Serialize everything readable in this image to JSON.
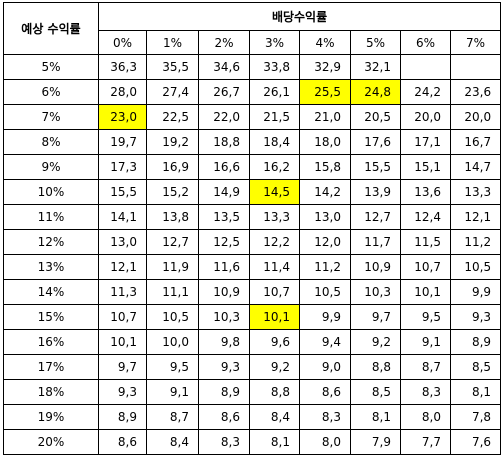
{
  "table": {
    "corner": "예상 수익률",
    "group_header": "배당수익률",
    "columns": [
      "0%",
      "1%",
      "2%",
      "3%",
      "4%",
      "5%",
      "6%",
      "7%"
    ],
    "rows": [
      {
        "label": "5%",
        "values": [
          "36,3",
          "35,5",
          "34,6",
          "33,8",
          "32,9",
          "32,1",
          null,
          null
        ]
      },
      {
        "label": "6%",
        "values": [
          "28,0",
          "27,4",
          "26,7",
          "26,1",
          "25,5",
          "24,8",
          "24,2",
          "23,6"
        ]
      },
      {
        "label": "7%",
        "values": [
          "23,0",
          "22,5",
          "22,0",
          "21,5",
          "21,0",
          "20,5",
          "20,0",
          "20,0"
        ]
      },
      {
        "label": "8%",
        "values": [
          "19,7",
          "19,2",
          "18,8",
          "18,4",
          "18,0",
          "17,6",
          "17,1",
          "16,7"
        ]
      },
      {
        "label": "9%",
        "values": [
          "17,3",
          "16,9",
          "16,6",
          "16,2",
          "15,8",
          "15,5",
          "15,1",
          "14,7"
        ]
      },
      {
        "label": "10%",
        "values": [
          "15,5",
          "15,2",
          "14,9",
          "14,5",
          "14,2",
          "13,9",
          "13,6",
          "13,3"
        ]
      },
      {
        "label": "11%",
        "values": [
          "14,1",
          "13,8",
          "13,5",
          "13,3",
          "13,0",
          "12,7",
          "12,4",
          "12,1"
        ]
      },
      {
        "label": "12%",
        "values": [
          "13,0",
          "12,7",
          "12,5",
          "12,2",
          "12,0",
          "11,7",
          "11,5",
          "11,2"
        ]
      },
      {
        "label": "13%",
        "values": [
          "12,1",
          "11,9",
          "11,6",
          "11,4",
          "11,2",
          "10,9",
          "10,7",
          "10,5"
        ]
      },
      {
        "label": "14%",
        "values": [
          "11,3",
          "11,1",
          "10,9",
          "10,7",
          "10,5",
          "10,3",
          "10,1",
          "9,9"
        ]
      },
      {
        "label": "15%",
        "values": [
          "10,7",
          "10,5",
          "10,3",
          "10,1",
          "9,9",
          "9,7",
          "9,5",
          "9,3"
        ]
      },
      {
        "label": "16%",
        "values": [
          "10,1",
          "10,0",
          "9,8",
          "9,6",
          "9,4",
          "9,2",
          "9,1",
          "8,9"
        ]
      },
      {
        "label": "17%",
        "values": [
          "9,7",
          "9,5",
          "9,3",
          "9,2",
          "9,0",
          "8,8",
          "8,7",
          "8,5"
        ]
      },
      {
        "label": "18%",
        "values": [
          "9,3",
          "9,1",
          "8,9",
          "8,8",
          "8,6",
          "8,5",
          "8,3",
          "8,1"
        ]
      },
      {
        "label": "19%",
        "values": [
          "8,9",
          "8,7",
          "8,6",
          "8,4",
          "8,3",
          "8,1",
          "8,0",
          "7,8"
        ]
      },
      {
        "label": "20%",
        "values": [
          "8,6",
          "8,4",
          "8,3",
          "8,1",
          "8,0",
          "7,9",
          "7,7",
          "7,6"
        ]
      }
    ],
    "highlight_color": "#ffff00",
    "highlight": [
      {
        "row": 1,
        "col": 4
      },
      {
        "row": 1,
        "col": 5
      },
      {
        "row": 2,
        "col": 0
      },
      {
        "row": 5,
        "col": 3
      },
      {
        "row": 10,
        "col": 3
      }
    ]
  }
}
